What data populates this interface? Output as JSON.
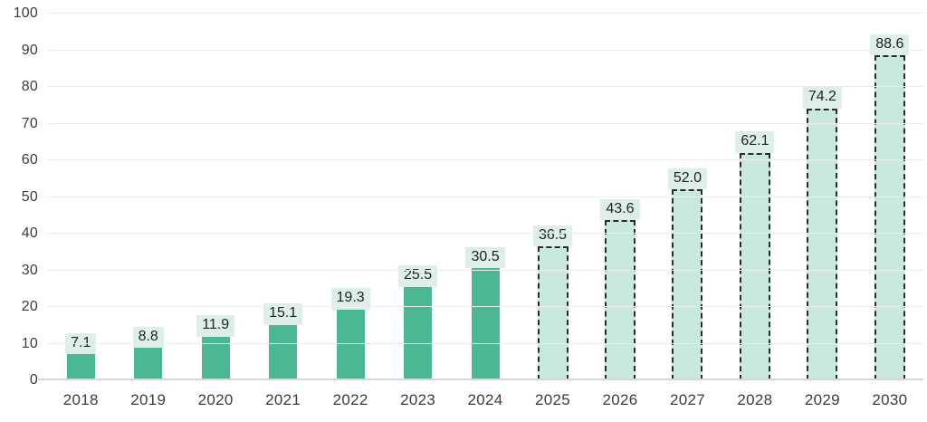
{
  "chart_data": {
    "type": "bar",
    "title": "",
    "xlabel": "",
    "ylabel": "",
    "ylim": [
      0,
      100
    ],
    "y_ticks": [
      0,
      10,
      20,
      30,
      40,
      50,
      60,
      70,
      80,
      90,
      100
    ],
    "grid": true,
    "legend": "none",
    "categories": [
      "2018",
      "2019",
      "2020",
      "2021",
      "2022",
      "2023",
      "2024",
      "2025",
      "2026",
      "2027",
      "2028",
      "2029",
      "2030"
    ],
    "values": [
      7.1,
      8.8,
      11.9,
      15.1,
      19.3,
      25.5,
      30.5,
      36.5,
      43.6,
      52.0,
      62.1,
      74.2,
      88.6
    ],
    "bars": [
      {
        "year": "2018",
        "value": 7.1,
        "label": "7.1",
        "style": "solid"
      },
      {
        "year": "2019",
        "value": 8.8,
        "label": "8.8",
        "style": "solid"
      },
      {
        "year": "2020",
        "value": 11.9,
        "label": "11.9",
        "style": "solid"
      },
      {
        "year": "2021",
        "value": 15.1,
        "label": "15.1",
        "style": "solid"
      },
      {
        "year": "2022",
        "value": 19.3,
        "label": "19.3",
        "style": "solid"
      },
      {
        "year": "2023",
        "value": 25.5,
        "label": "25.5",
        "style": "solid"
      },
      {
        "year": "2024",
        "value": 30.5,
        "label": "30.5",
        "style": "solid"
      },
      {
        "year": "2025",
        "value": 36.5,
        "label": "36.5",
        "style": "dashed"
      },
      {
        "year": "2026",
        "value": 43.6,
        "label": "43.6",
        "style": "dashed"
      },
      {
        "year": "2027",
        "value": 52.0,
        "label": "52.0",
        "style": "dashed"
      },
      {
        "year": "2028",
        "value": 62.1,
        "label": "62.1",
        "style": "dashed"
      },
      {
        "year": "2029",
        "value": 74.2,
        "label": "74.2",
        "style": "dashed"
      },
      {
        "year": "2030",
        "value": 88.6,
        "label": "88.6",
        "style": "dashed"
      }
    ],
    "colors": {
      "solid_bar_fill": "#4ab893",
      "projected_bar_fill": "#c9e9dc",
      "projected_bar_border": "#2b2b2b",
      "value_label_bg": "#dcf0e7",
      "value_label_text": "#222222",
      "axis_text": "#3d3d3d",
      "gridline": "#ededed",
      "baseline": "#d7d7d7"
    },
    "notes": "Bars 2018-2024 are solid (actuals); bars 2025-2030 are dashed outlines (forecast)."
  }
}
